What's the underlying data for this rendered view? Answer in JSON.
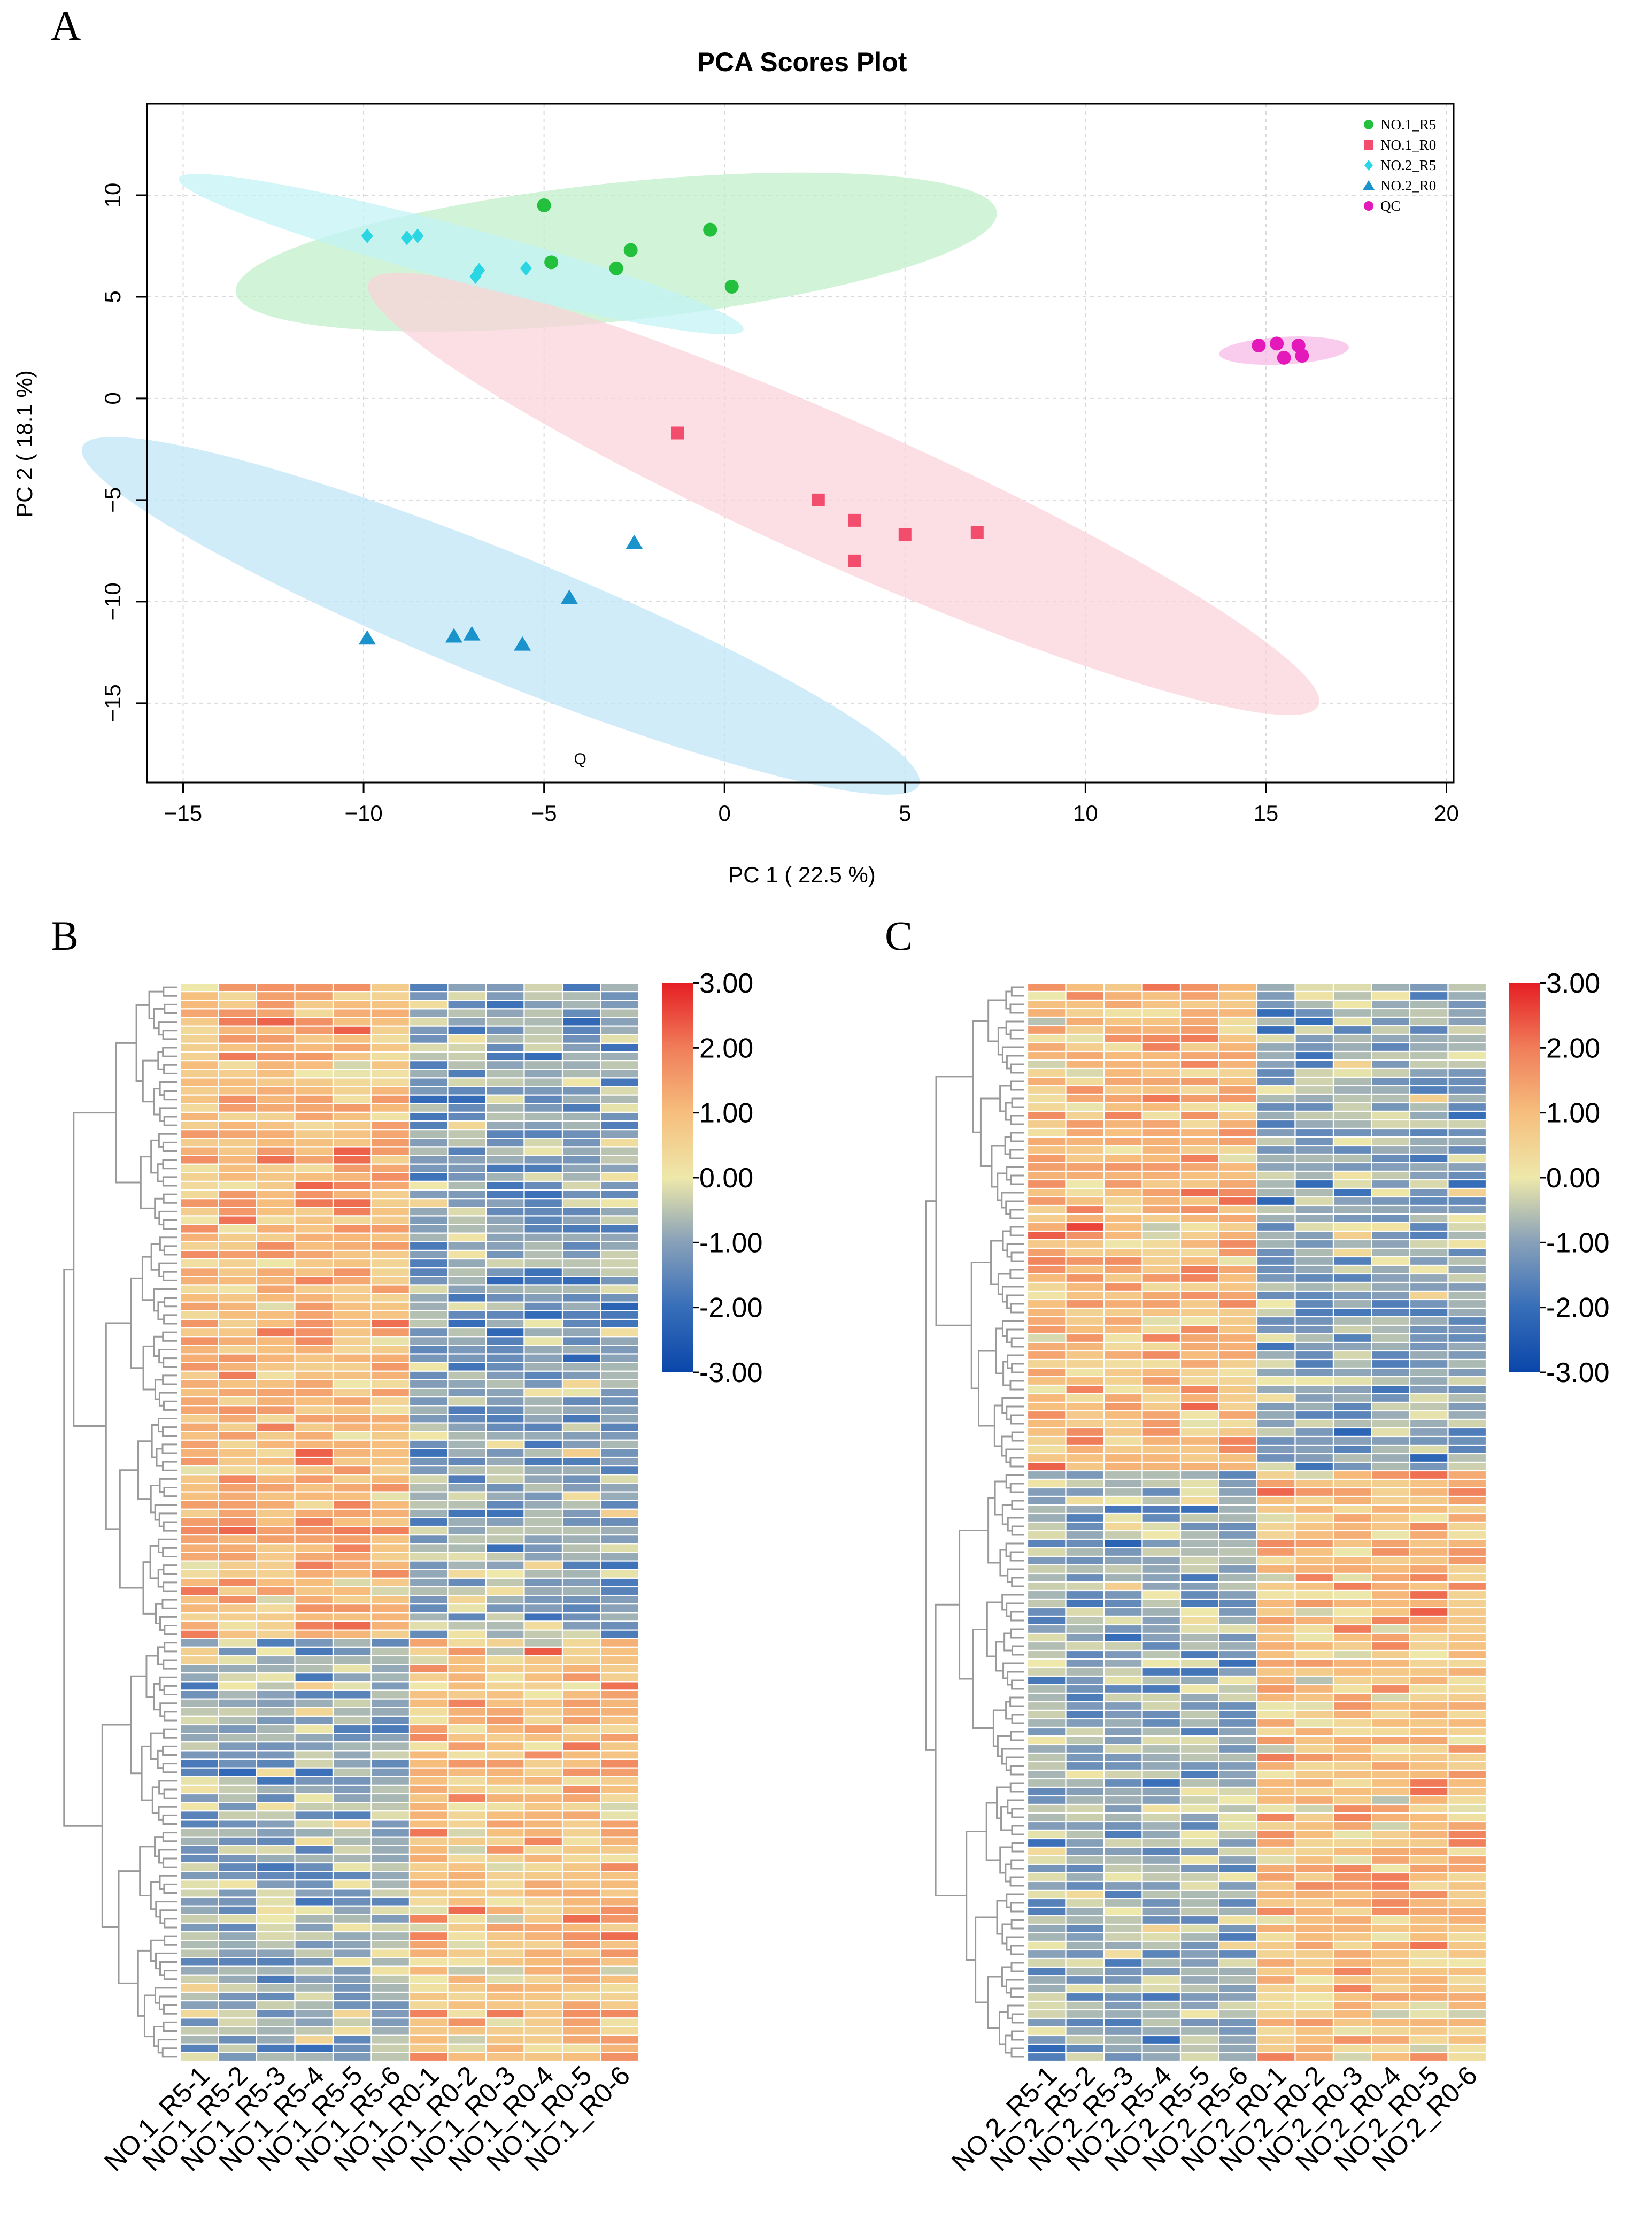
{
  "chart_data": [
    {
      "panel": "A",
      "type": "scatter",
      "title": "PCA Scores Plot",
      "xlabel": "PC 1 ( 22.5 %)",
      "ylabel": "PC 2 ( 18.1 %)",
      "xlim": [
        -16,
        20.2
      ],
      "ylim": [
        -18.9,
        14.5
      ],
      "xticks": [
        -15,
        -10,
        -5,
        0,
        5,
        10,
        15,
        20
      ],
      "yticks": [
        -15,
        -10,
        -5,
        0,
        5,
        10
      ],
      "grid": true,
      "legend_position": "top-right",
      "annotation": {
        "text": "Q",
        "x": -4,
        "y": -18.0
      },
      "series": [
        {
          "name": "NO.1_R5",
          "color": "#22c03c",
          "marker": "circle",
          "ellipse": {
            "cx": -3.0,
            "cy": 7.2,
            "rx": 10.6,
            "ry": 3.4,
            "angle": -6,
            "fill": "#bfefc8"
          },
          "points": [
            [
              -5.0,
              9.5
            ],
            [
              -0.4,
              8.3
            ],
            [
              -2.6,
              7.3
            ],
            [
              -4.8,
              6.7
            ],
            [
              -3.0,
              6.4
            ],
            [
              0.2,
              5.5
            ]
          ]
        },
        {
          "name": "NO.1_R0",
          "color": "#f24d6c",
          "marker": "square",
          "ellipse": {
            "cx": 3.3,
            "cy": -4.7,
            "rx": 14.4,
            "ry": 3.5,
            "angle": 24,
            "fill": "#fbd3d9"
          },
          "points": [
            [
              -1.3,
              -1.7
            ],
            [
              2.6,
              -5.0
            ],
            [
              3.6,
              -6.0
            ],
            [
              5.0,
              -6.7
            ],
            [
              7.0,
              -6.6
            ],
            [
              3.6,
              -8.0
            ]
          ]
        },
        {
          "name": "NO.2_R5",
          "color": "#2ad6e4",
          "marker": "diamond",
          "ellipse": {
            "cx": -7.3,
            "cy": 7.1,
            "rx": 8.1,
            "ry": 1.35,
            "angle": 15,
            "fill": "#c2f3f7"
          },
          "points": [
            [
              -9.9,
              8.0
            ],
            [
              -8.8,
              7.9
            ],
            [
              -8.5,
              8.0
            ],
            [
              -6.8,
              6.3
            ],
            [
              -6.9,
              6.0
            ],
            [
              -5.5,
              6.4
            ]
          ]
        },
        {
          "name": "NO.2_R0",
          "color": "#1a93cc",
          "marker": "triangle",
          "ellipse": {
            "cx": -6.2,
            "cy": -10.7,
            "rx": 12.5,
            "ry": 3.1,
            "angle": 22,
            "fill": "#bfe4f6"
          },
          "points": [
            [
              -2.5,
              -7.1
            ],
            [
              -4.3,
              -9.8
            ],
            [
              -9.9,
              -11.8
            ],
            [
              -7.5,
              -11.7
            ],
            [
              -7.0,
              -11.6
            ],
            [
              -5.6,
              -12.1
            ]
          ]
        },
        {
          "name": "QC",
          "color": "#e419ba",
          "marker": "circle",
          "ellipse": {
            "cx": 15.5,
            "cy": 2.35,
            "rx": 1.8,
            "ry": 0.68,
            "angle": -3,
            "fill": "#f6b8e7"
          },
          "points": [
            [
              14.8,
              2.6
            ],
            [
              15.3,
              2.7
            ],
            [
              15.9,
              2.6
            ],
            [
              15.5,
              2.0
            ],
            [
              16.0,
              2.1
            ]
          ]
        }
      ]
    },
    {
      "panel": "B",
      "type": "heatmap",
      "columns": [
        "NO.1_R5-1",
        "NO.1_R5-2",
        "NO.1_R5-3",
        "NO.1_R5-4",
        "NO.1_R5-5",
        "NO.1_R5-6",
        "NO.1_R0-1",
        "NO.1_R0-2",
        "NO.1_R0-3",
        "NO.1_R0-4",
        "NO.1_R0-5",
        "NO.1_R0-6"
      ],
      "n_rows": 125,
      "group_split_row": 76,
      "colorbar": {
        "min": -3,
        "max": 3,
        "labels": [
          "3.00",
          "2.00",
          "1.00",
          "0.00",
          "-1.00",
          "-2.00",
          "-3.00"
        ]
      },
      "row_dendrogram": "left"
    },
    {
      "panel": "C",
      "type": "heatmap",
      "columns": [
        "NO.2_R5-1",
        "NO.2_R5-2",
        "NO.2_R5-3",
        "NO.2_R5-4",
        "NO.2_R5-5",
        "NO.2_R5-6",
        "NO.2_R0-1",
        "NO.2_R0-2",
        "NO.2_R0-3",
        "NO.2_R0-4",
        "NO.2_R0-5",
        "NO.2_R0-6"
      ],
      "n_rows": 126,
      "group_split_row": 57,
      "colorbar": {
        "min": -3,
        "max": 3,
        "labels": [
          "3.00",
          "2.00",
          "1.00",
          "0.00",
          "-1.00",
          "-2.00",
          "-3.00"
        ]
      },
      "row_dendrogram": "left"
    }
  ],
  "panel_labels": {
    "a": "A",
    "b": "B",
    "c": "C"
  }
}
